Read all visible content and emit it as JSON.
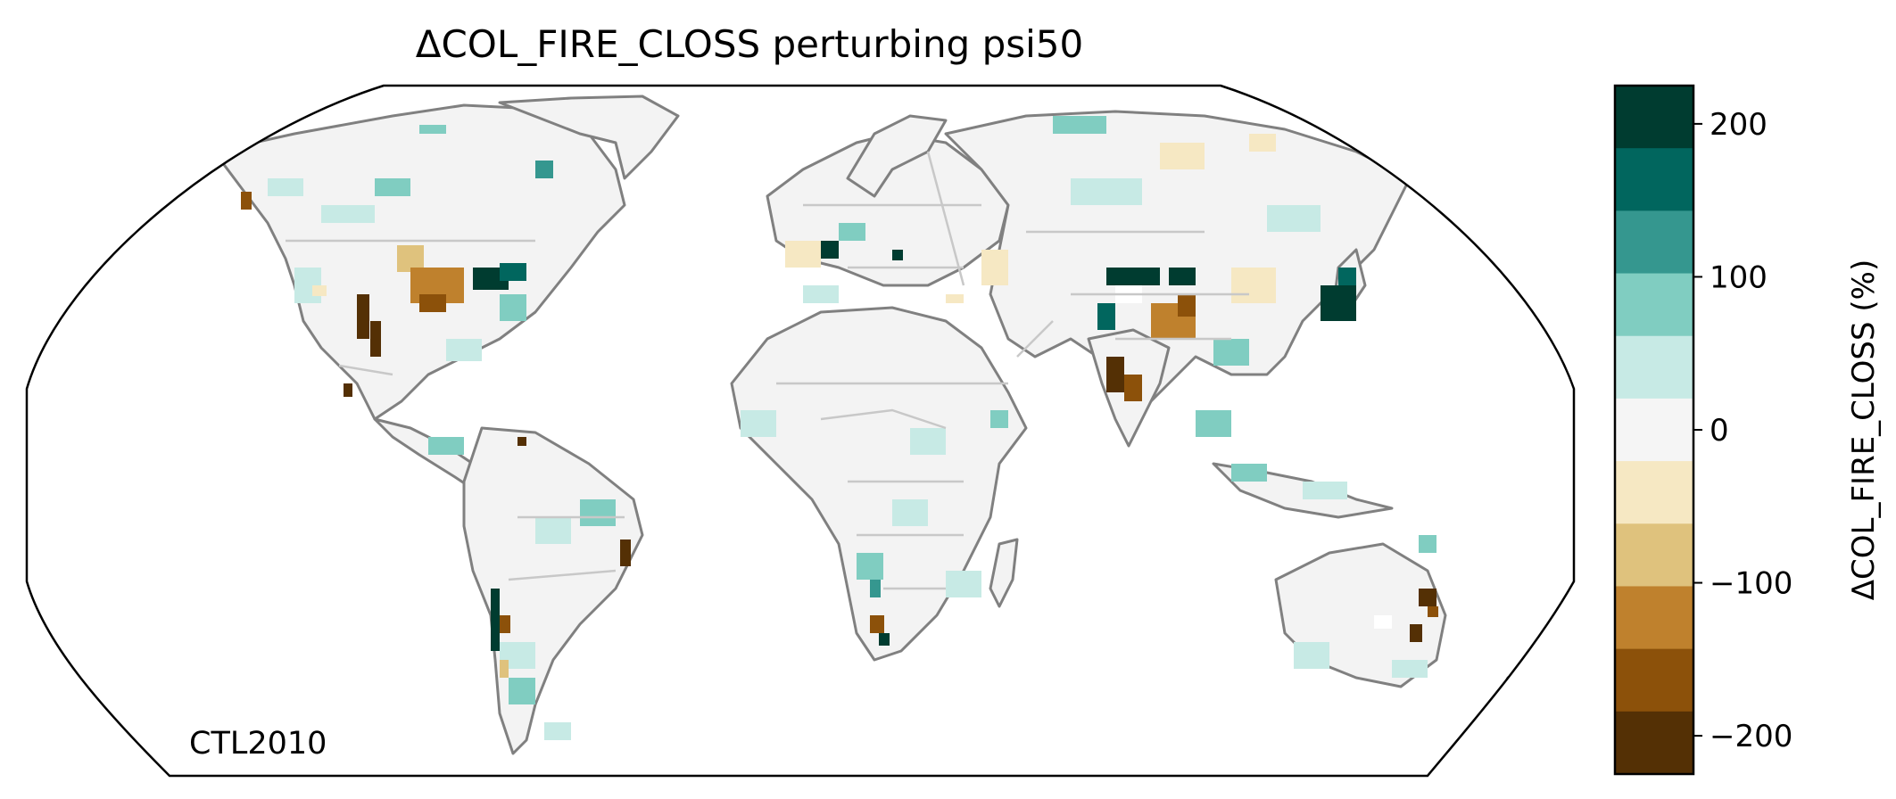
{
  "title": "ΔCOL_FIRE_CLOSS perturbing psi50",
  "panel_label": "CTL2010",
  "colorbar": {
    "label": "ΔCOL_FIRE_CLOSS (%)",
    "ticks": [
      "200",
      "100",
      "0",
      "−100",
      "−200"
    ],
    "tick_values": [
      200,
      100,
      0,
      -100,
      -200
    ],
    "range": [
      -225,
      225
    ],
    "colors_top_to_bottom": [
      "#003c30",
      "#01665e",
      "#35978f",
      "#80cdc1",
      "#c7eae5",
      "#f5f5f5",
      "#f6e8c3",
      "#dfc27d",
      "#bf812d",
      "#8c510a",
      "#543005"
    ]
  },
  "colors": {
    "coastline": "#808080",
    "borders": "#c8c8c8",
    "map_outline": "#000000",
    "ocean": "#ffffff"
  }
}
